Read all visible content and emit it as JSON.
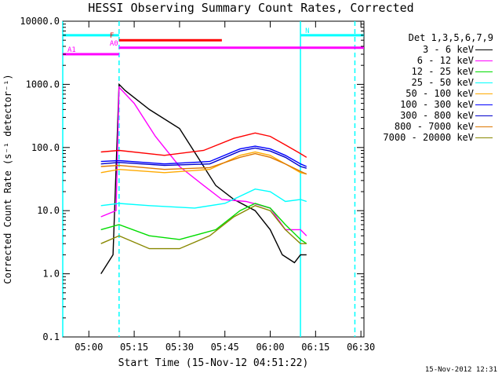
{
  "chart_data": {
    "type": "line",
    "title": "HESSI Observing Summary Count Rates, Corrected",
    "xlabel": "Start Time (15-Nov-12 04:51:22)",
    "ylabel": "Corrected Count Rate (s⁻¹ detector⁻¹)",
    "yscale": "log",
    "ylim": [
      0.1,
      10000
    ],
    "xlim": [
      "04:51:22",
      "06:31:00"
    ],
    "x_ticks": [
      "05:00",
      "05:15",
      "05:30",
      "05:45",
      "06:00",
      "06:15",
      "06:30"
    ],
    "y_ticks": [
      "0.1",
      "1.0",
      "10.0",
      "100.0",
      "1000.0",
      "10000.0"
    ],
    "legend": {
      "title": "Det 1,3,5,6,7,9",
      "placement": "right"
    },
    "series": [
      {
        "name": "3 - 6 keV",
        "color": "#000000",
        "points": [
          [
            "05:04",
            1.0
          ],
          [
            "05:08",
            2.0
          ],
          [
            "05:10",
            1000.0
          ],
          [
            "05:12",
            800.0
          ],
          [
            "05:20",
            400.0
          ],
          [
            "05:30",
            200.0
          ],
          [
            "05:38",
            50.0
          ],
          [
            "05:42",
            25.0
          ],
          [
            "05:48",
            15.0
          ],
          [
            "05:55",
            10.0
          ],
          [
            "06:00",
            5.0
          ],
          [
            "06:04",
            2.0
          ],
          [
            "06:08",
            1.5
          ],
          [
            "06:10",
            2.0
          ],
          [
            "06:12",
            2.0
          ]
        ]
      },
      {
        "name": "6 - 12 keV",
        "color": "#ff00ff",
        "points": [
          [
            "05:04",
            8.0
          ],
          [
            "05:09",
            10.0
          ],
          [
            "05:10",
            900.0
          ],
          [
            "05:15",
            500.0
          ],
          [
            "05:22",
            150.0
          ],
          [
            "05:30",
            50.0
          ],
          [
            "05:38",
            25.0
          ],
          [
            "05:44",
            15.0
          ],
          [
            "05:52",
            14.0
          ],
          [
            "06:00",
            11.0
          ],
          [
            "06:05",
            5.0
          ],
          [
            "06:10",
            5.0
          ],
          [
            "06:12",
            4.0
          ]
        ]
      },
      {
        "name": "12 - 25 keV",
        "color": "#00dd00",
        "points": [
          [
            "05:04",
            5.0
          ],
          [
            "05:10",
            6.0
          ],
          [
            "05:20",
            4.0
          ],
          [
            "05:30",
            3.5
          ],
          [
            "05:42",
            5.0
          ],
          [
            "05:50",
            10.0
          ],
          [
            "05:55",
            13.0
          ],
          [
            "06:00",
            11.0
          ],
          [
            "06:05",
            6.0
          ],
          [
            "06:10",
            3.5
          ],
          [
            "06:12",
            3.0
          ]
        ]
      },
      {
        "name": "25 - 50 keV",
        "color": "#00ffff",
        "points": [
          [
            "05:04",
            12.0
          ],
          [
            "05:10",
            13.0
          ],
          [
            "05:20",
            12.0
          ],
          [
            "05:35",
            11.0
          ],
          [
            "05:45",
            13.0
          ],
          [
            "05:55",
            22.0
          ],
          [
            "06:00",
            20.0
          ],
          [
            "06:05",
            14.0
          ],
          [
            "06:10",
            15.0
          ],
          [
            "06:12",
            14.0
          ]
        ]
      },
      {
        "name": "50 - 100 keV",
        "color": "#ffaa00",
        "points": [
          [
            "05:04",
            40.0
          ],
          [
            "05:10",
            45.0
          ],
          [
            "05:25",
            40.0
          ],
          [
            "05:40",
            45.0
          ],
          [
            "05:50",
            75.0
          ],
          [
            "05:55",
            85.0
          ],
          [
            "06:00",
            75.0
          ],
          [
            "06:05",
            55.0
          ],
          [
            "06:10",
            40.0
          ],
          [
            "06:12",
            38.0
          ]
        ]
      },
      {
        "name": "100 - 300 keV",
        "color": "#0000ff",
        "points": [
          [
            "05:04",
            60.0
          ],
          [
            "05:10",
            62.0
          ],
          [
            "05:25",
            55.0
          ],
          [
            "05:40",
            60.0
          ],
          [
            "05:50",
            95.0
          ],
          [
            "05:55",
            105.0
          ],
          [
            "06:00",
            95.0
          ],
          [
            "06:05",
            75.0
          ],
          [
            "06:10",
            55.0
          ],
          [
            "06:12",
            50.0
          ]
        ]
      },
      {
        "name": "300 - 800 keV",
        "color": "#0000cc",
        "points": [
          [
            "05:04",
            55.0
          ],
          [
            "05:10",
            58.0
          ],
          [
            "05:25",
            52.0
          ],
          [
            "05:40",
            55.0
          ],
          [
            "05:50",
            88.0
          ],
          [
            "05:55",
            98.0
          ],
          [
            "06:00",
            88.0
          ],
          [
            "06:05",
            70.0
          ],
          [
            "06:10",
            50.0
          ],
          [
            "06:12",
            47.0
          ]
        ]
      },
      {
        "name": "800 - 7000 keV",
        "color": "#dd7700",
        "points": [
          [
            "05:04",
            50.0
          ],
          [
            "05:10",
            52.0
          ],
          [
            "05:25",
            45.0
          ],
          [
            "05:40",
            48.0
          ],
          [
            "05:50",
            70.0
          ],
          [
            "05:55",
            80.0
          ],
          [
            "06:00",
            70.0
          ],
          [
            "06:05",
            55.0
          ],
          [
            "06:10",
            42.0
          ],
          [
            "06:12",
            38.0
          ]
        ]
      },
      {
        "name": "7000 - 20000 keV",
        "color": "#888800",
        "points": [
          [
            "05:04",
            3.0
          ],
          [
            "05:10",
            4.0
          ],
          [
            "05:20",
            2.5
          ],
          [
            "05:30",
            2.5
          ],
          [
            "05:40",
            4.0
          ],
          [
            "05:48",
            8.0
          ],
          [
            "05:55",
            12.0
          ],
          [
            "06:00",
            10.0
          ],
          [
            "06:05",
            5.0
          ],
          [
            "06:10",
            3.0
          ],
          [
            "06:12",
            3.0
          ]
        ]
      },
      {
        "name": "3 - 6 keV",
        "color": "#ff0000",
        "note": "",
        "points": [
          [
            "05:04",
            85.0
          ],
          [
            "05:10",
            90.0
          ],
          [
            "05:25",
            75.0
          ],
          [
            "05:38",
            90.0
          ],
          [
            "05:48",
            140.0
          ],
          [
            "05:55",
            170.0
          ],
          [
            "06:00",
            150.0
          ],
          [
            "06:05",
            110.0
          ],
          [
            "06:10",
            80.0
          ],
          [
            "06:12",
            70.0
          ]
        ]
      }
    ],
    "flags": [
      {
        "label": "N",
        "color": "#00ffff",
        "spans": [
          [
            "04:51:22",
            "05:10"
          ],
          [
            "06:10",
            "06:31:00"
          ]
        ],
        "level": 6000
      },
      {
        "label": "F",
        "color": "#ff0000",
        "spans": [
          [
            "05:10",
            "05:44"
          ]
        ],
        "level": 5000
      },
      {
        "label": "A0",
        "color": "#ff00ff",
        "spans": [
          [
            "05:10",
            "06:31:00"
          ]
        ],
        "level": 3800
      },
      {
        "label": "A1",
        "color": "#ff00ff",
        "spans": [
          [
            "04:51:22",
            "05:10"
          ]
        ],
        "level": 3000
      }
    ],
    "vertical_markers": [
      {
        "time": "04:51:22",
        "style": "solid",
        "color": "#00ffff"
      },
      {
        "time": "05:10",
        "style": "dashed",
        "color": "#00ffff"
      },
      {
        "time": "06:10",
        "style": "solid",
        "color": "#00ffff"
      },
      {
        "time": "06:28",
        "style": "dashed",
        "color": "#00ffff"
      }
    ]
  },
  "footer": {
    "timestamp": "15-Nov-2012 12:31"
  }
}
